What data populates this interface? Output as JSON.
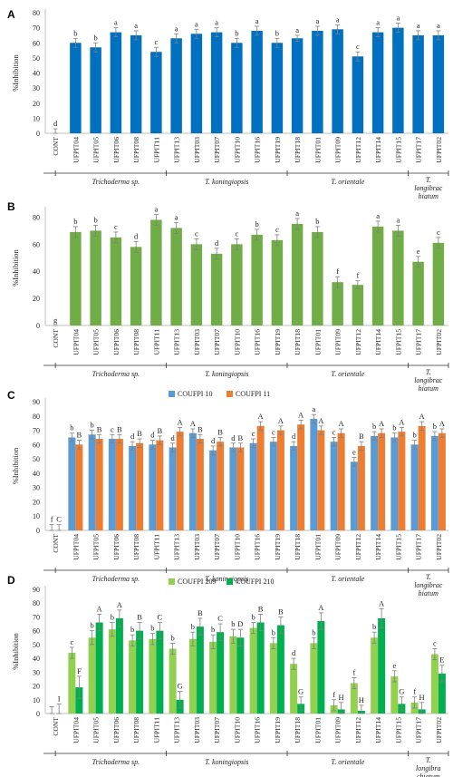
{
  "chart_data": [
    {
      "panel": "A",
      "type": "bar",
      "ylabel": "%Inhibition",
      "ylim": [
        0,
        80
      ],
      "yticks": [
        0,
        10,
        20,
        30,
        40,
        50,
        60,
        70,
        80
      ],
      "grid": false,
      "categories": [
        "CONT",
        "UFPIT04",
        "UFPIT05",
        "UFPIT06",
        "UFPIT08",
        "UFPIT11",
        "UFPIT13",
        "UFPIT03",
        "UFPIT07",
        "UFPIT10",
        "UFPIT16",
        "UFPIT19",
        "UFPIT18",
        "UFPIT01",
        "UFPIT09",
        "UFPIT12",
        "UFPIT14",
        "UFPIT15",
        "UFPIT17",
        "UFPIT02"
      ],
      "groups": [
        {
          "label": "Trichoderma sp.",
          "start": 1,
          "end": 5
        },
        {
          "label": "T. koningiopsis",
          "start": 6,
          "end": 11
        },
        {
          "label": "T. orientale",
          "start": 12,
          "end": 17
        },
        {
          "label": "T. longibrac hiatum",
          "start": 18,
          "end": 19
        }
      ],
      "series": [
        {
          "name": "",
          "color": "#0070c0",
          "values": [
            0,
            60,
            57,
            67,
            65,
            54,
            63,
            66,
            67,
            60,
            68,
            60,
            63,
            68,
            69,
            51,
            67,
            70,
            65,
            65
          ],
          "errors": [
            3,
            3,
            3,
            3,
            3,
            3,
            3,
            3,
            3,
            3,
            3,
            3,
            2,
            3,
            3,
            3,
            3,
            3,
            3,
            3
          ],
          "letters": [
            "d",
            "b",
            "b",
            "a",
            "a",
            "c",
            "a",
            "a",
            "a",
            "b",
            "a",
            "b",
            "a",
            "a",
            "a",
            "c",
            "a",
            "a",
            "a",
            "a"
          ]
        }
      ]
    },
    {
      "panel": "B",
      "type": "bar",
      "ylabel": "%Inhibition",
      "ylim": [
        0,
        85
      ],
      "yticks": [
        0,
        20,
        40,
        60,
        80
      ],
      "grid": false,
      "categories": [
        "CONT",
        "UFPIT04",
        "UFPIT05",
        "UFPIT06",
        "UFPIT08",
        "UFPIT11",
        "UFPIT13",
        "UFPIT03",
        "UFPIT07",
        "UFPIT10",
        "UFPIT16",
        "UFPIT19",
        "UFPIT18",
        "UFPIT01",
        "UFPIT09",
        "UFPIT12",
        "UFPIT14",
        "UFPIT15",
        "UFPIT17",
        "UFPIT02"
      ],
      "groups": [
        {
          "label": "Trichoderma sp.",
          "start": 1,
          "end": 5
        },
        {
          "label": "T. koningiopsis",
          "start": 6,
          "end": 11
        },
        {
          "label": "T. orientale",
          "start": 12,
          "end": 17
        },
        {
          "label": "T. longibrac hiatum",
          "start": 18,
          "end": 19
        }
      ],
      "series": [
        {
          "name": "",
          "color": "#70ad47",
          "values": [
            0,
            69,
            70,
            65,
            58,
            78,
            72,
            60,
            53,
            60,
            67,
            63,
            75,
            69,
            32,
            30,
            73,
            70,
            47,
            61
          ],
          "errors": [
            0,
            4,
            4,
            4,
            4,
            4,
            4,
            4,
            4,
            4,
            4,
            4,
            4,
            4,
            4,
            3,
            4,
            4,
            4,
            4
          ],
          "letters": [
            "g",
            "b",
            "b",
            "c",
            "d",
            "a",
            "a",
            "c",
            "d",
            "c",
            "b",
            "c",
            "a",
            "b",
            "f",
            "f",
            "a",
            "a",
            "e",
            "c"
          ]
        }
      ]
    },
    {
      "panel": "C",
      "type": "bar",
      "ylabel": "%Inhibition",
      "ylim": [
        0,
        90
      ],
      "yticks": [
        0,
        10,
        20,
        30,
        40,
        50,
        60,
        70,
        80,
        90
      ],
      "grid": false,
      "legend": "top-center",
      "categories": [
        "CONT",
        "UFPIT04",
        "UFPIT05",
        "UFPIT06",
        "UFPIT08",
        "UFPIT11",
        "UFPIT13",
        "UFPIT03",
        "UFPIT07",
        "UFPIT10",
        "UFPIT16",
        "UFPIT19",
        "UFPIT18",
        "UFPIT01",
        "UFPIT09",
        "UFPIT12",
        "UFPIT14",
        "UFPIT15",
        "UFPIT17",
        "UFPIT02"
      ],
      "groups": [
        {
          "label": "Trichoderma sp.",
          "start": 1,
          "end": 5
        },
        {
          "label": "T. koningiopsis",
          "start": 6,
          "end": 11
        },
        {
          "label": "T. orientale",
          "start": 12,
          "end": 17
        },
        {
          "label": "T. longibrac hiatum",
          "start": 18,
          "end": 19
        }
      ],
      "series": [
        {
          "name": "COUFPI 10",
          "color": "#5b9bd5",
          "values": [
            0,
            65,
            67,
            64,
            59,
            60,
            58,
            68,
            56,
            58,
            61,
            62,
            59,
            78,
            62,
            48,
            66,
            65,
            60,
            66
          ],
          "errors": [
            4,
            3,
            3,
            3,
            3,
            3,
            3,
            3,
            3,
            3,
            3,
            3,
            3,
            3,
            3,
            3,
            3,
            3,
            3,
            3
          ],
          "letters": [
            "f",
            "b",
            "b",
            "c",
            "d",
            "d",
            "d",
            "A",
            "d",
            "d",
            "c",
            "c",
            "d",
            "a",
            "c",
            "e",
            "b",
            "b",
            "b",
            "b"
          ]
        },
        {
          "name": "COUFPI 11",
          "color": "#ed7d31",
          "values": [
            0,
            60,
            64,
            64,
            61,
            63,
            69,
            64,
            62,
            58,
            73,
            70,
            74,
            70,
            68,
            59,
            68,
            69,
            73,
            68
          ],
          "errors": [
            4,
            3,
            3,
            3,
            3,
            3,
            3,
            3,
            3,
            3,
            3,
            3,
            3,
            3,
            3,
            3,
            3,
            3,
            3,
            3
          ],
          "letters": [
            "C",
            "B",
            "B",
            "B",
            "B",
            "B",
            "A",
            "B",
            "B",
            "B",
            "A",
            "A",
            "A",
            "A",
            "A",
            "B",
            "A",
            "A",
            "A",
            "A"
          ]
        }
      ]
    },
    {
      "panel": "D",
      "type": "bar",
      "ylabel": "%Inhibition",
      "ylim": [
        0,
        90
      ],
      "yticks": [
        0,
        10,
        20,
        30,
        40,
        50,
        60,
        70,
        80,
        90
      ],
      "grid": false,
      "legend": "top-center",
      "categories": [
        "CONT",
        "UFPIT04",
        "UFPIT05",
        "UFPIT06",
        "UFPIT08",
        "UFPIT11",
        "UFPIT13",
        "UFPIT03",
        "UFPIT07",
        "UFPIT10",
        "UFPIT16",
        "UFPIT19",
        "UFPIT18",
        "UFPIT01",
        "UFPIT09",
        "UFPIT12",
        "UFPIT14",
        "UFPIT15",
        "UFPIT17",
        "UFPIT02"
      ],
      "groups": [
        {
          "label": "Trichoderma sp.",
          "start": 1,
          "end": 5
        },
        {
          "label": "T. koningiopsis",
          "start": 6,
          "end": 11
        },
        {
          "label": "T. orientale",
          "start": 12,
          "end": 17
        },
        {
          "label": "T. longibra chiatum",
          "start": 18,
          "end": 19
        }
      ],
      "series": [
        {
          "name": "COUFPI 209",
          "color": "#92d050",
          "values": [
            0,
            44,
            55,
            61,
            53,
            54,
            47,
            54,
            52,
            56,
            62,
            51,
            36,
            51,
            6,
            22,
            55,
            27,
            8,
            43
          ],
          "errors": [
            5,
            4,
            5,
            5,
            4,
            4,
            4,
            5,
            5,
            5,
            4,
            4,
            4,
            4,
            4,
            4,
            4,
            4,
            4,
            4
          ],
          "letters": [
            "",
            "c",
            "b",
            "b",
            "b",
            "b",
            "b",
            "b",
            "b",
            "b",
            "b",
            "b",
            "d",
            "b",
            "f",
            "f",
            "b",
            "e",
            "f",
            "c"
          ]
        },
        {
          "name": "COUFPI 210",
          "color": "#00b050",
          "values": [
            0,
            19,
            66,
            69,
            60,
            60,
            10,
            63,
            59,
            55,
            66,
            64,
            7,
            67,
            3,
            2,
            69,
            7,
            3,
            29
          ],
          "errors": [
            7,
            8,
            6,
            6,
            6,
            6,
            6,
            6,
            6,
            6,
            6,
            6,
            5,
            6,
            5,
            4,
            7,
            5,
            5,
            6
          ],
          "letters": [
            "I",
            "F",
            "A",
            "A",
            "B",
            "C",
            "G",
            "B",
            "C",
            "D",
            "B",
            "B",
            "G",
            "A",
            "H",
            "H",
            "A",
            "G",
            "H",
            "E"
          ]
        }
      ]
    }
  ]
}
